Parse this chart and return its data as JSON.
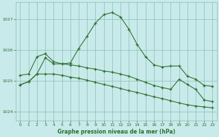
{
  "title": "Graphe pression niveau de la mer (hPa)",
  "bg_color": "#c8eaea",
  "plot_bg_color": "#c8eaea",
  "grid_color": "#8abcb0",
  "line_color": "#2d6e2d",
  "xlim": [
    -0.5,
    23.5
  ],
  "ylim": [
    1023.7,
    1027.55
  ],
  "yticks": [
    1024,
    1025,
    1026,
    1027
  ],
  "xticks": [
    0,
    1,
    2,
    3,
    4,
    5,
    6,
    7,
    8,
    9,
    10,
    11,
    12,
    13,
    14,
    15,
    16,
    17,
    18,
    19,
    20,
    21,
    22,
    23
  ],
  "line1_x": [
    0,
    1,
    2,
    3,
    4,
    5,
    6,
    7,
    8,
    9,
    10,
    11,
    12,
    13,
    14,
    15,
    16,
    17,
    18,
    19,
    20,
    21,
    22,
    23
  ],
  "line1_y": [
    1024.87,
    1024.97,
    1025.22,
    1025.75,
    1025.55,
    1025.55,
    1025.58,
    1026.05,
    1026.45,
    1026.88,
    1027.15,
    1027.22,
    1027.08,
    1026.68,
    1026.18,
    1025.78,
    1025.52,
    1025.45,
    1025.48,
    1025.48,
    1025.15,
    1025.05,
    1024.85,
    1024.82
  ],
  "line2_x": [
    0,
    1,
    2,
    3,
    4,
    5,
    6,
    7,
    8,
    9,
    10,
    11,
    12,
    13,
    14,
    15,
    16,
    17,
    18,
    19,
    20,
    21,
    22,
    23
  ],
  "line2_y": [
    1025.18,
    1025.22,
    1025.78,
    1025.88,
    1025.62,
    1025.55,
    1025.52,
    1025.48,
    1025.42,
    1025.38,
    1025.32,
    1025.28,
    1025.22,
    1025.15,
    1025.05,
    1024.95,
    1024.85,
    1024.78,
    1024.72,
    1025.05,
    1024.88,
    1024.72,
    1024.38,
    1024.32
  ],
  "line3_x": [
    0,
    1,
    2,
    3,
    4,
    5,
    6,
    7,
    8,
    9,
    10,
    11,
    12,
    13,
    14,
    15,
    16,
    17,
    18,
    19,
    20,
    21,
    22,
    23
  ],
  "line3_y": [
    1024.87,
    1024.97,
    1025.22,
    1025.22,
    1025.22,
    1025.18,
    1025.12,
    1025.08,
    1025.02,
    1024.95,
    1024.88,
    1024.82,
    1024.75,
    1024.68,
    1024.62,
    1024.55,
    1024.48,
    1024.42,
    1024.35,
    1024.28,
    1024.22,
    1024.18,
    1024.15,
    1024.12
  ]
}
